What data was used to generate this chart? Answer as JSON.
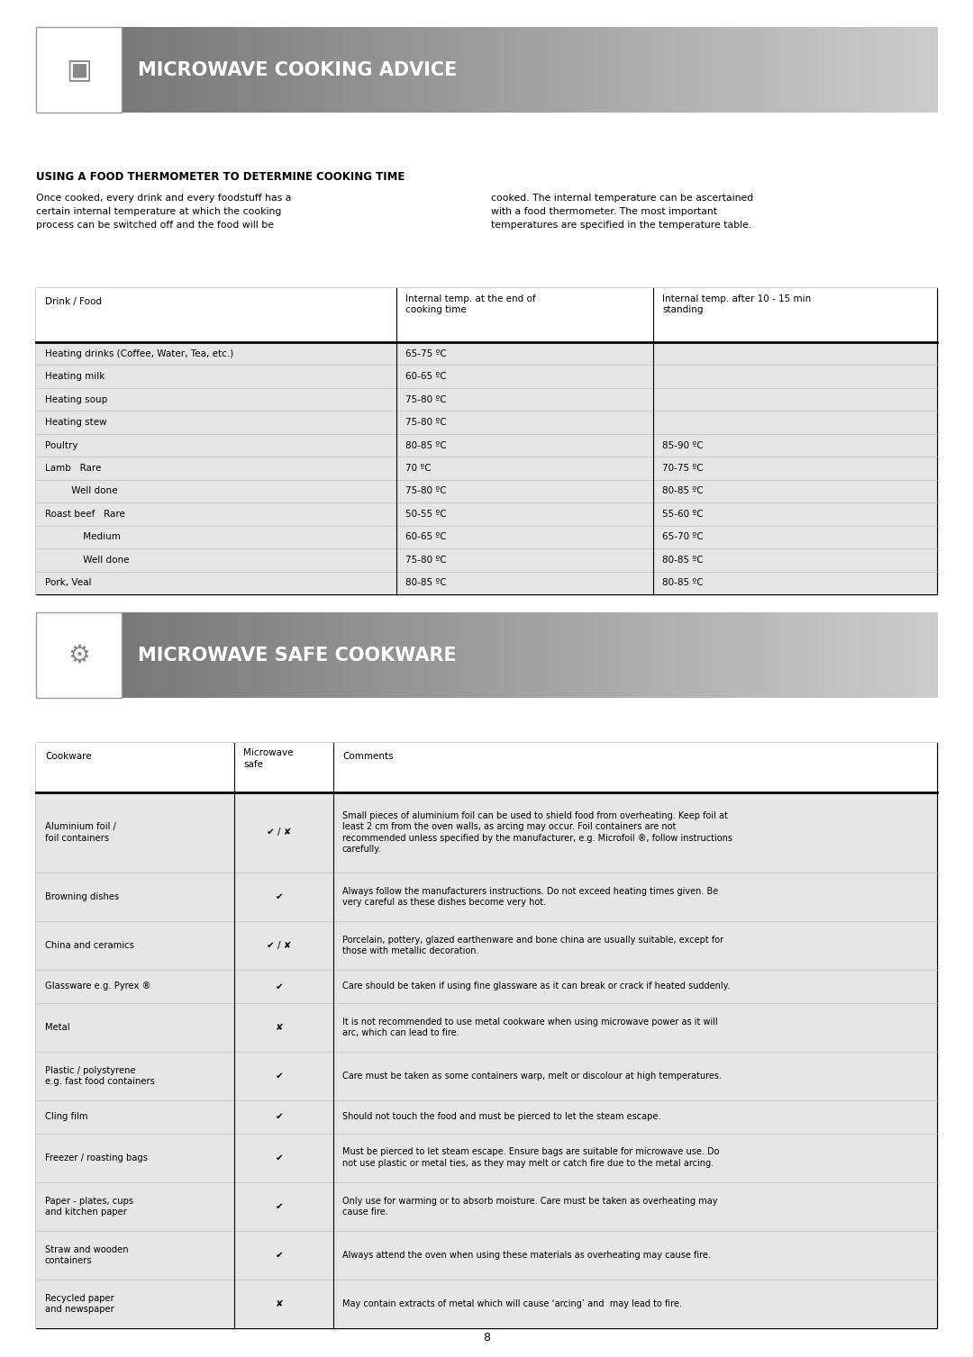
{
  "page_bg": "#ffffff",
  "page_number": "8",
  "header1_text": "MICROWAVE COOKING ADVICE",
  "header2_text": "MICROWAVE SAFE COOKWARE",
  "section1_title": "USING A FOOD THERMOMETER TO DETERMINE COOKING TIME",
  "section1_para_left": "Once cooked, every drink and every foodstuff has a\ncertain internal temperature at which the cooking\nprocess can be switched off and the food will be",
  "section1_para_right": "cooked. The internal temperature can be ascertained\nwith a food thermometer. The most important\ntemperatures are specified in the temperature table.",
  "temp_table_col_headers": [
    "Drink / Food",
    "Internal temp. at the end of\ncooking time",
    "Internal temp. after 10 - 15 min\nstanding"
  ],
  "temp_table_rows": [
    [
      "Heating drinks (Coffee, Water, Tea, etc.)",
      "65-75 ºC",
      ""
    ],
    [
      "Heating milk",
      "60-65 ºC",
      ""
    ],
    [
      "Heating soup",
      "75-80 ºC",
      ""
    ],
    [
      "Heating stew",
      "75-80 ºC",
      ""
    ],
    [
      "Poultry",
      "80-85 ºC",
      "85-90 ºC"
    ],
    [
      "Lamb   Rare",
      "70 ºC",
      "70-75 ºC"
    ],
    [
      "         Well done",
      "75-80 ºC",
      "80-85 ºC"
    ],
    [
      "Roast beef   Rare",
      "50-55 ºC",
      "55-60 ºC"
    ],
    [
      "             Medium",
      "60-65 ºC",
      "65-70 ºC"
    ],
    [
      "             Well done",
      "75-80 ºC",
      "80-85 ºC"
    ],
    [
      "Pork, Veal",
      "80-85 ºC",
      "80-85 ºC"
    ]
  ],
  "cookware_col_headers": [
    "Cookware",
    "Microwave\nsafe",
    "Comments"
  ],
  "cookware_rows": [
    [
      "Aluminium foil /\nfoil containers",
      "✔ / ✘",
      "Small pieces of aluminium foil can be used to shield food from overheating. Keep foil at\nleast 2 cm from the oven walls, as arcing may occur. Foil containers are not\nrecommended unless specified by the manufacturer, e.g. Microfoil ®, follow instructions\ncarefully."
    ],
    [
      "Browning dishes",
      "✔",
      "Always follow the manufacturers instructions. Do not exceed heating times given. Be\nvery careful as these dishes become very hot."
    ],
    [
      "China and ceramics",
      "✔ / ✘",
      "Porcelain, pottery, glazed earthenware and bone china are usually suitable, except for\nthose with metallic decoration."
    ],
    [
      "Glassware e.g. Pyrex ®",
      "✔",
      "Care should be taken if using fine glassware as it can break or crack if heated suddenly."
    ],
    [
      "Metal",
      "✘",
      "It is not recommended to use metal cookware when using microwave power as it will\narc, which can lead to fire."
    ],
    [
      "Plastic / polystyrene\ne.g. fast food containers",
      "✔",
      "Care must be taken as some containers warp, melt or discolour at high temperatures."
    ],
    [
      "Cling film",
      "✔",
      "Should not touch the food and must be pierced to let the steam escape."
    ],
    [
      "Freezer / roasting bags",
      "✔",
      "Must be pierced to let steam escape. Ensure bags are suitable for microwave use. Do\nnot use plastic or metal ties, as they may melt or catch fire due to the metal arcing."
    ],
    [
      "Paper - plates, cups\nand kitchen paper",
      "✔",
      "Only use for warming or to absorb moisture. Care must be taken as overheating may\ncause fire."
    ],
    [
      "Straw and wooden\ncontainers",
      "✔",
      "Always attend the oven when using these materials as overheating may cause fire."
    ],
    [
      "Recycled paper\nand newspaper",
      "✘",
      "May contain extracts of metal which will cause ‘arcing’ and  may lead to fire."
    ]
  ]
}
